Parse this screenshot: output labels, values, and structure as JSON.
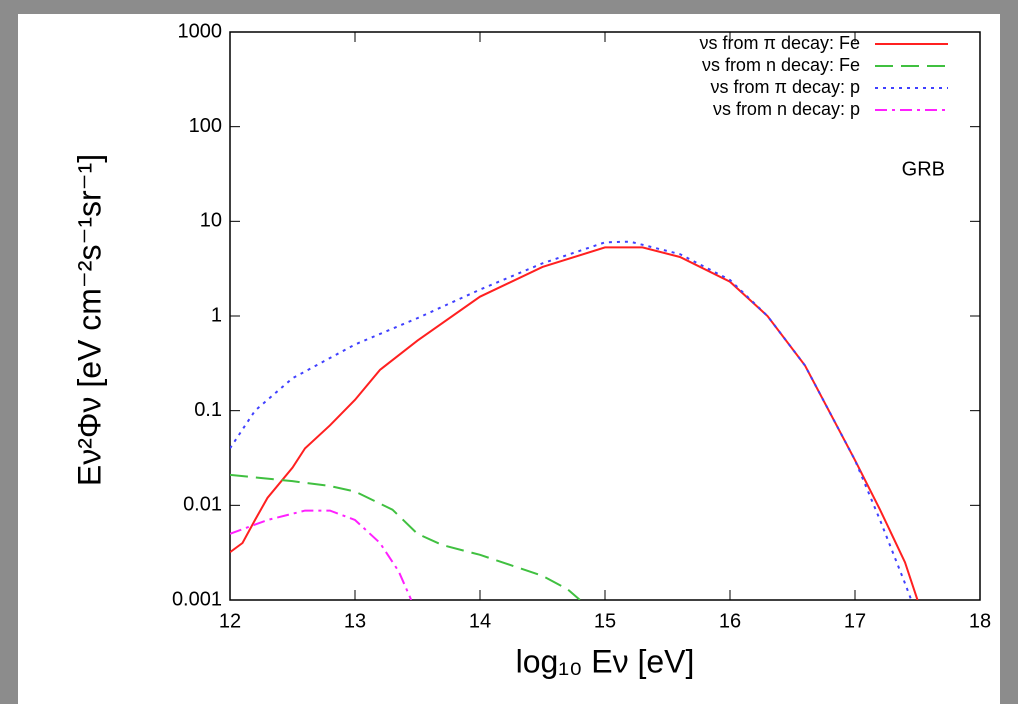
{
  "chart_data": {
    "type": "line",
    "xlabel": "log₁₀ Eν [eV]",
    "ylabel": "Eν²Φν [eV cm⁻²s⁻¹sr⁻¹]",
    "annotation": "GRB",
    "yscale": "log",
    "xlim": [
      12,
      18
    ],
    "xticks": [
      12,
      13,
      14,
      15,
      16,
      17,
      18
    ],
    "ylim": [
      0.001,
      1000
    ],
    "yticks": [
      0.001,
      0.01,
      0.1,
      1,
      10,
      100,
      1000
    ],
    "legend": "upper right",
    "series": [
      {
        "name": "νs from π decay: Fe",
        "color": "#ff2020",
        "style": "solid",
        "x": [
          12.0,
          12.1,
          12.2,
          12.3,
          12.5,
          12.6,
          12.8,
          13.0,
          13.2,
          13.5,
          14.0,
          14.5,
          15.0,
          15.3,
          15.6,
          16.0,
          16.3,
          16.6,
          17.0,
          17.2,
          17.4,
          17.5
        ],
        "values": [
          0.0032,
          0.004,
          0.007,
          0.012,
          0.025,
          0.04,
          0.07,
          0.13,
          0.27,
          0.55,
          1.6,
          3.3,
          5.3,
          5.3,
          4.2,
          2.3,
          1.0,
          0.3,
          0.03,
          0.009,
          0.0025,
          0.001
        ]
      },
      {
        "name": "νs from n decay: Fe",
        "color": "#40c040",
        "style": "dashed",
        "x": [
          12.0,
          12.5,
          12.8,
          13.0,
          13.3,
          13.5,
          13.7,
          14.0,
          14.5,
          14.7,
          14.8
        ],
        "values": [
          0.021,
          0.018,
          0.016,
          0.014,
          0.009,
          0.005,
          0.0038,
          0.003,
          0.0018,
          0.0013,
          0.001
        ]
      },
      {
        "name": "νs from π decay: p",
        "color": "#4040ff",
        "style": "dotted",
        "x": [
          12.0,
          12.2,
          12.5,
          13.0,
          13.5,
          14.0,
          14.5,
          15.0,
          15.2,
          15.6,
          16.0,
          16.3,
          16.6,
          17.0,
          17.2,
          17.4,
          17.45
        ],
        "values": [
          0.04,
          0.1,
          0.22,
          0.5,
          0.95,
          1.9,
          3.6,
          6.0,
          6.1,
          4.5,
          2.4,
          1.0,
          0.3,
          0.03,
          0.007,
          0.0015,
          0.001
        ]
      },
      {
        "name": "νs from n decay: p",
        "color": "#ff20ff",
        "style": "dashdot",
        "x": [
          12.0,
          12.3,
          12.6,
          12.8,
          13.0,
          13.2,
          13.35,
          13.45
        ],
        "values": [
          0.005,
          0.007,
          0.0088,
          0.0088,
          0.007,
          0.004,
          0.002,
          0.001
        ]
      }
    ]
  }
}
